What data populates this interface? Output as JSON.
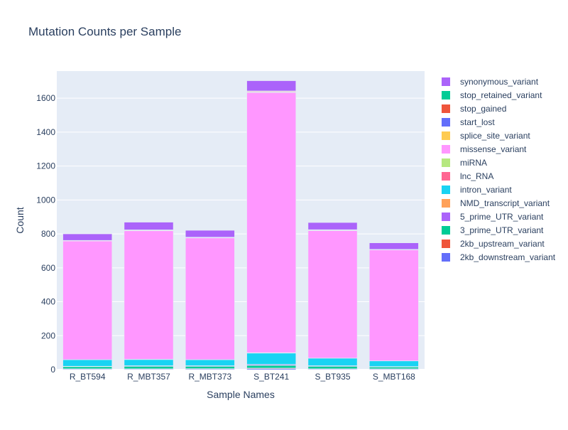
{
  "chart_data": {
    "type": "bar",
    "stacked": true,
    "title": "Mutation Counts per Sample",
    "xlabel": "Sample Names",
    "ylabel": "Count",
    "ylim": [
      0,
      1760
    ],
    "yticks": [
      0,
      200,
      400,
      600,
      800,
      1000,
      1200,
      1400,
      1600
    ],
    "grid": true,
    "legend_position": "right",
    "categories": [
      "R_BT594",
      "R_MBT357",
      "R_MBT373",
      "S_BT241",
      "S_BT935",
      "S_MBT168"
    ],
    "series": [
      {
        "name": "2kb_downstream_variant",
        "color": "#636efa",
        "values": [
          3,
          3,
          4,
          6,
          3,
          3
        ]
      },
      {
        "name": "2kb_upstream_variant",
        "color": "#EF553B",
        "values": [
          2,
          2,
          2,
          3,
          2,
          2
        ]
      },
      {
        "name": "3_prime_UTR_variant",
        "color": "#00cc96",
        "values": [
          12,
          14,
          13,
          15,
          14,
          10
        ]
      },
      {
        "name": "5_prime_UTR_variant",
        "color": "#ab63fa",
        "values": [
          2,
          3,
          3,
          5,
          3,
          2
        ]
      },
      {
        "name": "NMD_transcript_variant",
        "color": "#FFA15A",
        "values": [
          1,
          1,
          1,
          2,
          1,
          1
        ]
      },
      {
        "name": "intron_variant",
        "color": "#19d3f3",
        "values": [
          38,
          36,
          35,
          66,
          44,
          33
        ]
      },
      {
        "name": "lnc_RNA",
        "color": "#FF6692",
        "values": [
          1,
          1,
          1,
          2,
          1,
          1
        ]
      },
      {
        "name": "miRNA",
        "color": "#B6E880",
        "values": [
          0,
          1,
          0,
          1,
          0,
          0
        ]
      },
      {
        "name": "missense_variant",
        "color": "#FF97FF",
        "values": [
          699,
          757,
          717,
          1533,
          751,
          653
        ]
      },
      {
        "name": "splice_site_variant",
        "color": "#FECB52",
        "values": [
          1,
          2,
          1,
          3,
          2,
          1
        ]
      },
      {
        "name": "start_lost",
        "color": "#636efa",
        "values": [
          1,
          1,
          1,
          2,
          1,
          1
        ]
      },
      {
        "name": "stop_gained",
        "color": "#EF553B",
        "values": [
          1,
          2,
          2,
          3,
          2,
          1
        ]
      },
      {
        "name": "stop_retained_variant",
        "color": "#00cc96",
        "values": [
          1,
          1,
          1,
          2,
          1,
          1
        ]
      },
      {
        "name": "synonymous_variant",
        "color": "#ab63fa",
        "values": [
          38,
          45,
          40,
          60,
          42,
          38
        ]
      }
    ]
  }
}
